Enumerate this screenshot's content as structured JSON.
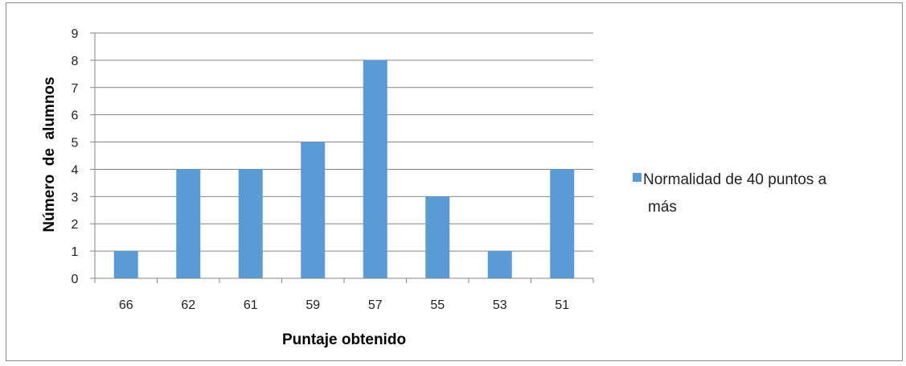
{
  "chart_data": {
    "type": "bar",
    "xlabel": "Puntaje obtenido",
    "ylabel": "Número  de  alumnos",
    "categories": [
      "66",
      "62",
      "61",
      "59",
      "57",
      "55",
      "53",
      "51"
    ],
    "series": [
      {
        "name": "Normalidad de 40 puntos a más",
        "values": [
          1,
          4,
          4,
          5,
          8,
          3,
          1,
          4
        ],
        "color": "#5b9bd5"
      }
    ],
    "ylim": [
      0,
      9
    ],
    "yticks": [
      "0",
      "1",
      "2",
      "3",
      "4",
      "5",
      "6",
      "7",
      "8",
      "9"
    ],
    "grid": true,
    "legend_position": "right"
  },
  "legend": {
    "line1": "Normalidad de 40 puntos a",
    "line2": "más"
  }
}
